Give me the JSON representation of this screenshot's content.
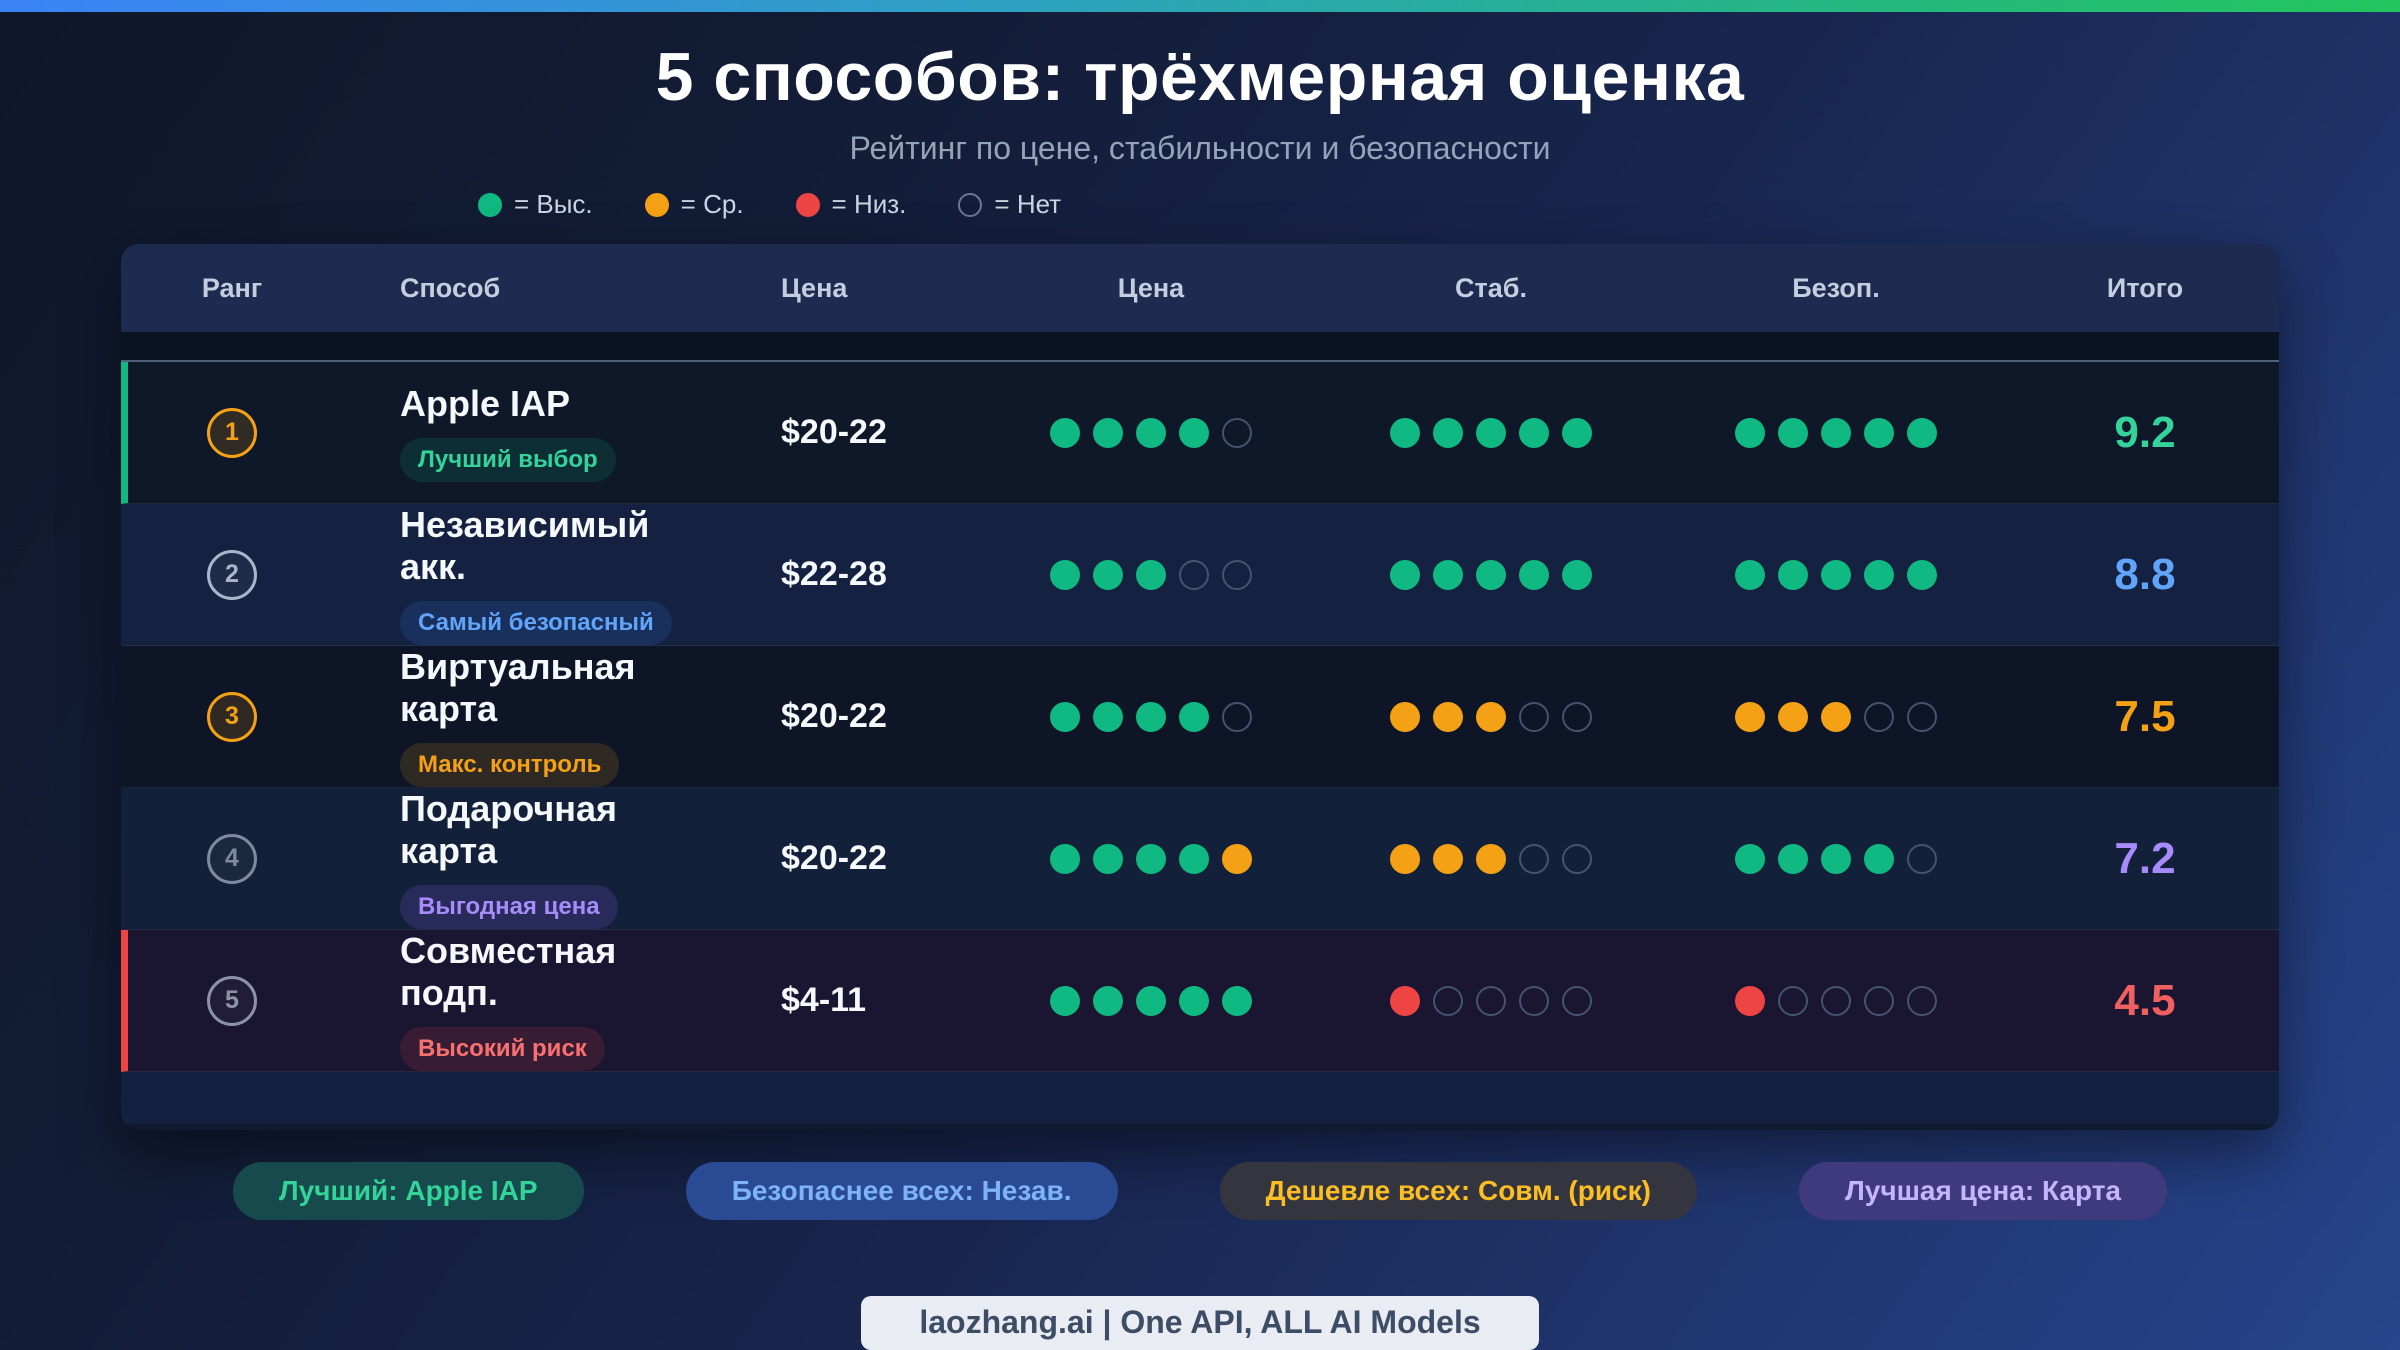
{
  "page": {
    "title": "5 способов: трёхмерная оценка",
    "subtitle": "Рейтинг по цене, стабильности и безопасности"
  },
  "legend": [
    {
      "name": "high",
      "label": "= Выс."
    },
    {
      "name": "medium",
      "label": "= Ср."
    },
    {
      "name": "low",
      "label": "= Низ."
    },
    {
      "name": "none",
      "label": "= Нет"
    }
  ],
  "dot_colors": {
    "high": "#10b981",
    "medium": "#f5a115",
    "low": "#ef4444",
    "none": "transparent"
  },
  "table": {
    "headers": [
      {
        "key": "rank",
        "label": "Ранг"
      },
      {
        "key": "method",
        "label": "Способ"
      },
      {
        "key": "price",
        "label": "Цена"
      },
      {
        "key": "price_dots",
        "label": "Цена"
      },
      {
        "key": "stability",
        "label": "Стаб."
      },
      {
        "key": "security",
        "label": "Безоп."
      },
      {
        "key": "total",
        "label": "Итого"
      }
    ],
    "rows": [
      {
        "rank": "1",
        "rank_color": "#f5a115",
        "rank_bg": "rgba(245,161,21,0.15)",
        "accent": "#10b981",
        "row_bg": "#0e1829",
        "method": "Apple IAP",
        "badge": {
          "label": "Лучший выбор",
          "color": "#34d399",
          "bg": "rgba(16,185,129,0.14)"
        },
        "price": "$20-22",
        "price_dots": [
          "high",
          "high",
          "high",
          "high",
          "none"
        ],
        "stability_dots": [
          "high",
          "high",
          "high",
          "high",
          "high"
        ],
        "security_dots": [
          "high",
          "high",
          "high",
          "high",
          "high"
        ],
        "score": "9.2",
        "score_color": "#34d399"
      },
      {
        "rank": "2",
        "rank_color": "#a9b6c9",
        "rank_bg": "rgba(148,163,184,0.08)",
        "accent": "",
        "row_bg": "#142140",
        "method": "Независимый акк.",
        "badge": {
          "label": "Самый безопасный",
          "color": "#60a5fa",
          "bg": "rgba(59,130,246,0.16)"
        },
        "price": "$22-28",
        "price_dots": [
          "high",
          "high",
          "high",
          "none",
          "none"
        ],
        "stability_dots": [
          "high",
          "high",
          "high",
          "high",
          "high"
        ],
        "security_dots": [
          "high",
          "high",
          "high",
          "high",
          "high"
        ],
        "score": "8.8",
        "score_color": "#60a5fa"
      },
      {
        "rank": "3",
        "rank_color": "#f5a115",
        "rank_bg": "rgba(245,161,21,0.15)",
        "accent": "",
        "row_bg": "#0d1526",
        "method": "Виртуальная карта",
        "badge": {
          "label": "Макс. контроль",
          "color": "#f5a115",
          "bg": "rgba(245,161,21,0.14)"
        },
        "price": "$20-22",
        "price_dots": [
          "high",
          "high",
          "high",
          "high",
          "none"
        ],
        "stability_dots": [
          "medium",
          "medium",
          "medium",
          "none",
          "none"
        ],
        "security_dots": [
          "medium",
          "medium",
          "medium",
          "none",
          "none"
        ],
        "score": "7.5",
        "score_color": "#f5a115"
      },
      {
        "rank": "4",
        "rank_color": "#7e8aa0",
        "rank_bg": "rgba(148,163,184,0.06)",
        "accent": "",
        "row_bg": "#132039",
        "method": "Подарочная карта",
        "badge": {
          "label": "Выгодная цена",
          "color": "#a78bfa",
          "bg": "rgba(139,92,246,0.18)"
        },
        "price": "$20-22",
        "price_dots": [
          "high",
          "high",
          "high",
          "high",
          "medium"
        ],
        "stability_dots": [
          "medium",
          "medium",
          "medium",
          "none",
          "none"
        ],
        "security_dots": [
          "high",
          "high",
          "high",
          "high",
          "none"
        ],
        "score": "7.2",
        "score_color": "#a78bfa"
      },
      {
        "rank": "5",
        "rank_color": "#8b93a7",
        "rank_bg": "rgba(148,163,184,0.06)",
        "accent": "#ef4444",
        "row_bg": "#1a1531",
        "method": "Совместная подп.",
        "badge": {
          "label": "Высокий риск",
          "color": "#f87171",
          "bg": "rgba(239,68,68,0.14)"
        },
        "price": "$4-11",
        "price_dots": [
          "high",
          "high",
          "high",
          "high",
          "high"
        ],
        "stability_dots": [
          "low",
          "none",
          "none",
          "none",
          "none"
        ],
        "security_dots": [
          "low",
          "none",
          "none",
          "none",
          "none"
        ],
        "score": "4.5",
        "score_color": "#f16060"
      }
    ]
  },
  "summary_badges": [
    {
      "label": "Лучший: Apple IAP",
      "color": "#34d399",
      "bg": "#164a4c"
    },
    {
      "label": "Безопаснее всех: Незав.",
      "color": "#7cb3f9",
      "bg": "#2a4a94"
    },
    {
      "label": "Дешевле всех: Совм. (риск)",
      "color": "#fbbf24",
      "bg": "#35353f"
    },
    {
      "label": "Лучшая цена: Карта",
      "color": "#c4b5fd",
      "bg": "#3f3a7d"
    }
  ],
  "footer": {
    "label": "laozhang.ai | One API, ALL AI Models"
  },
  "chart_data": {
    "type": "table",
    "title": "5 способов: трёхмерная оценка",
    "subtitle": "Рейтинг по цене, стабильности и безопасности",
    "rating_scale": "0-5 точек (Выс. / Ср. / Низ. / Нет)",
    "columns": [
      "Ранг",
      "Способ",
      "Цена",
      "Цена (баллы)",
      "Стаб.",
      "Безоп.",
      "Итого"
    ],
    "rows": [
      {
        "rank": 1,
        "method": "Apple IAP",
        "tag": "Лучший выбор",
        "price": "$20-22",
        "price_filled": 4,
        "stability_filled": 5,
        "security_filled": 5,
        "total": 9.2
      },
      {
        "rank": 2,
        "method": "Независимый акк.",
        "tag": "Самый безопасный",
        "price": "$22-28",
        "price_filled": 3,
        "stability_filled": 5,
        "security_filled": 5,
        "total": 8.8
      },
      {
        "rank": 3,
        "method": "Виртуальная карта",
        "tag": "Макс. контроль",
        "price": "$20-22",
        "price_filled": 4,
        "stability_filled": 3,
        "security_filled": 3,
        "total": 7.5
      },
      {
        "rank": 4,
        "method": "Подарочная карта",
        "tag": "Выгодная цена",
        "price": "$20-22",
        "price_filled": 5,
        "stability_filled": 3,
        "security_filled": 4,
        "total": 7.2
      },
      {
        "rank": 5,
        "method": "Совместная подп.",
        "tag": "Высокий риск",
        "price": "$4-11",
        "price_filled": 5,
        "stability_filled": 1,
        "security_filled": 1,
        "total": 4.5
      }
    ]
  }
}
